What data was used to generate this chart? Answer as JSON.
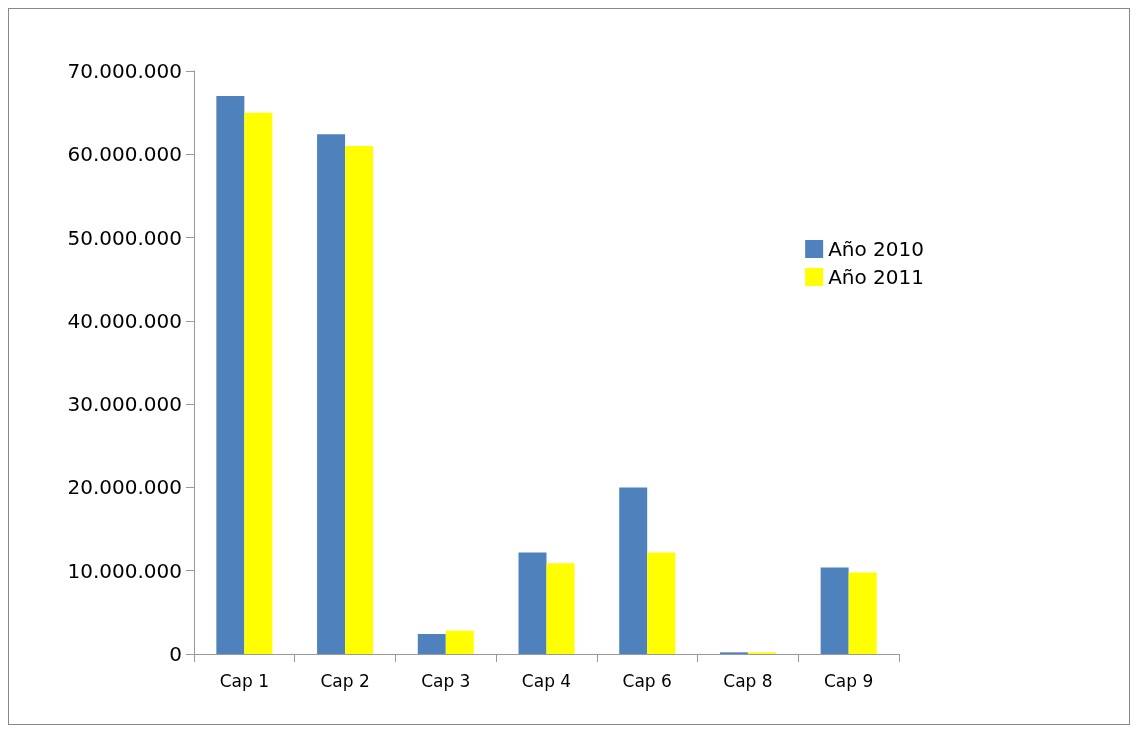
{
  "chart_data": {
    "type": "bar",
    "categories": [
      "Cap 1",
      "Cap 2",
      "Cap 3",
      "Cap 4",
      "Cap 6",
      "Cap 8",
      "Cap 9"
    ],
    "series": [
      {
        "name": "Año 2010",
        "color": "#4f81bd",
        "values": [
          67000000,
          62400000,
          2400000,
          12200000,
          20000000,
          200000,
          10400000
        ]
      },
      {
        "name": "Año 2011",
        "color": "#ffff00",
        "values": [
          65000000,
          61000000,
          2800000,
          10900000,
          12200000,
          200000,
          9800000
        ]
      }
    ],
    "ylim": [
      0,
      70000000
    ],
    "yticks": [
      {
        "value": 0,
        "label": "0"
      },
      {
        "value": 10000000,
        "label": "10.000.000"
      },
      {
        "value": 20000000,
        "label": "20.000.000"
      },
      {
        "value": 30000000,
        "label": "30.000.000"
      },
      {
        "value": 40000000,
        "label": "40.000.000"
      },
      {
        "value": 50000000,
        "label": "50.000.000"
      },
      {
        "value": 60000000,
        "label": "60.000.000"
      },
      {
        "value": 70000000,
        "label": "70.000.000"
      }
    ],
    "grid": false,
    "legend": "right"
  }
}
